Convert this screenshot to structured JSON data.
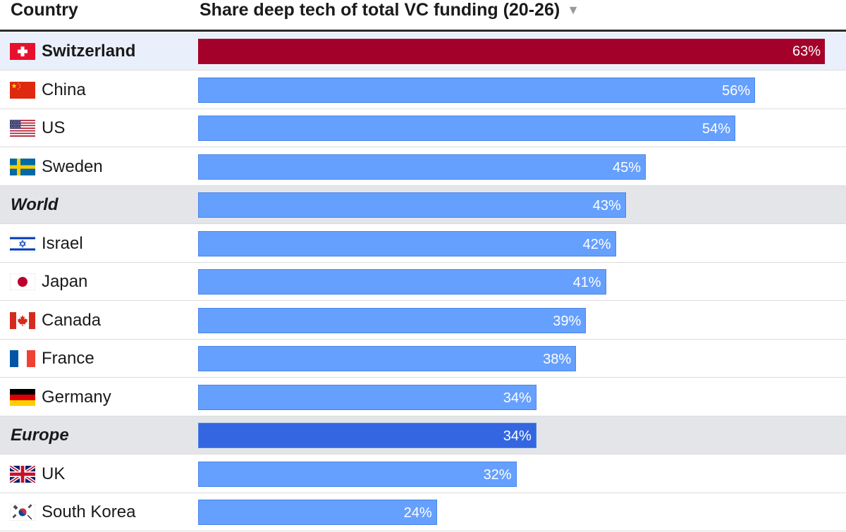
{
  "header": {
    "country_label": "Country",
    "metric_label": "Share deep tech of total VC funding (20-26)",
    "sort_icon": "sort-descending-icon",
    "sort_glyph": "▼"
  },
  "colors": {
    "highlight_bar": "#a3002a",
    "default_bar": "#66a0fe",
    "aggregate_bar_europe": "#3366e0",
    "bar_border": "#4a86e8",
    "highlight_row_bg": "#eaf0fb",
    "aggregate_row_bg": "#e3e5e9"
  },
  "chart_data": {
    "type": "bar",
    "orientation": "horizontal",
    "title": "Share deep tech of total VC funding (20-26)",
    "value_suffix": "%",
    "xlim": [
      0,
      63
    ],
    "categories": [
      "Switzerland",
      "China",
      "US",
      "Sweden",
      "World",
      "Israel",
      "Japan",
      "Canada",
      "France",
      "Germany",
      "Europe",
      "UK",
      "South Korea"
    ],
    "values": [
      63,
      56,
      54,
      45,
      43,
      42,
      41,
      39,
      38,
      34,
      34,
      32,
      24
    ],
    "value_labels": [
      "63%",
      "56%",
      "54%",
      "45%",
      "43%",
      "42%",
      "41%",
      "39%",
      "38%",
      "34%",
      "34%",
      "32%",
      "24%"
    ],
    "rows": [
      {
        "name": "Switzerland",
        "flag": "switzerland-flag-icon",
        "kind": "highlight"
      },
      {
        "name": "China",
        "flag": "china-flag-icon",
        "kind": "country"
      },
      {
        "name": "US",
        "flag": "us-flag-icon",
        "kind": "country"
      },
      {
        "name": "Sweden",
        "flag": "sweden-flag-icon",
        "kind": "country"
      },
      {
        "name": "World",
        "flag": "",
        "kind": "aggregate"
      },
      {
        "name": "Israel",
        "flag": "israel-flag-icon",
        "kind": "country"
      },
      {
        "name": "Japan",
        "flag": "japan-flag-icon",
        "kind": "country"
      },
      {
        "name": "Canada",
        "flag": "canada-flag-icon",
        "kind": "country"
      },
      {
        "name": "France",
        "flag": "france-flag-icon",
        "kind": "country"
      },
      {
        "name": "Germany",
        "flag": "germany-flag-icon",
        "kind": "country"
      },
      {
        "name": "Europe",
        "flag": "",
        "kind": "aggregate"
      },
      {
        "name": "UK",
        "flag": "uk-flag-icon",
        "kind": "country"
      },
      {
        "name": "South Korea",
        "flag": "south-korea-flag-icon",
        "kind": "country"
      }
    ]
  }
}
